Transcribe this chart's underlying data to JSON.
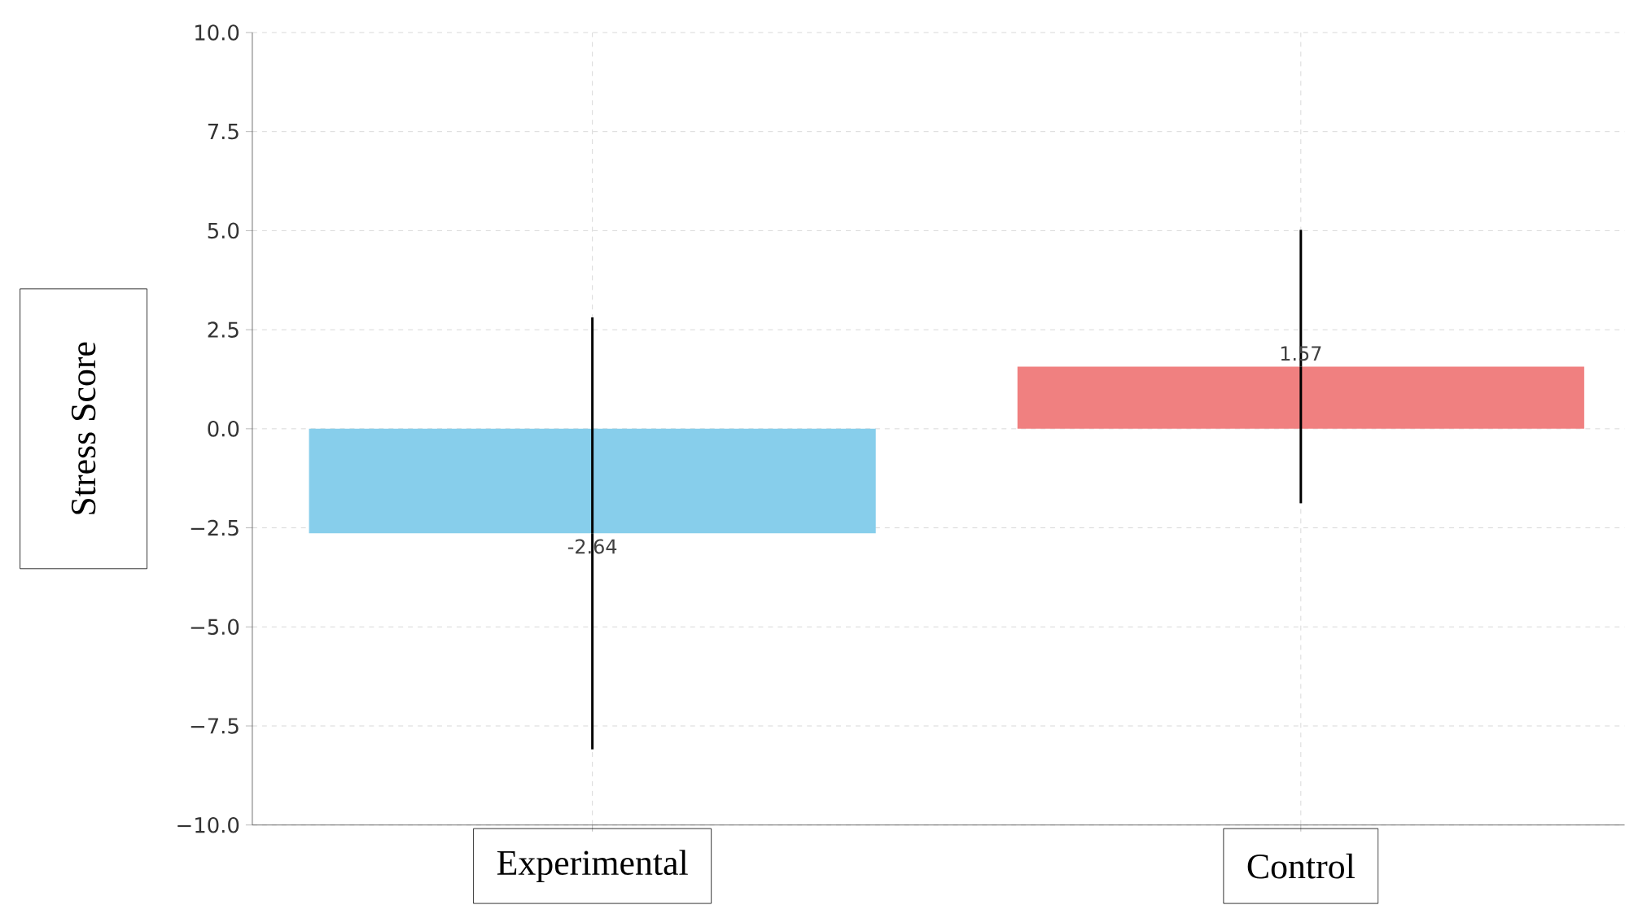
{
  "chart_data": {
    "type": "bar",
    "categories": [
      "Experimental",
      "Control"
    ],
    "values": [
      -2.64,
      1.57
    ],
    "colors": [
      "#87ceeb",
      "#f08080"
    ],
    "errors": [
      5.45,
      3.45
    ],
    "ylabel": "Stress Score",
    "ylim": [
      -10,
      10
    ],
    "yticks": [
      {
        "value": -10,
        "label": "−10.0"
      },
      {
        "value": -7.5,
        "label": "−7.5"
      },
      {
        "value": -5,
        "label": "−5.0"
      },
      {
        "value": -2.5,
        "label": "−2.5"
      },
      {
        "value": 0,
        "label": "0.0"
      },
      {
        "value": 2.5,
        "label": "2.5"
      },
      {
        "value": 5,
        "label": "5.0"
      },
      {
        "value": 7.5,
        "label": "7.5"
      },
      {
        "value": 10,
        "label": "10.0"
      }
    ],
    "grid": true,
    "data_labels": true
  }
}
